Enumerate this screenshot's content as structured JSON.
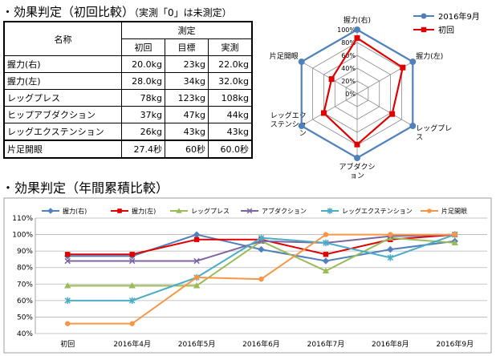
{
  "heading1": {
    "main": "・効果判定（初回比較）",
    "note": "（実測「0」は未測定）"
  },
  "heading2": "・効果判定（年間累積比較）",
  "table": {
    "header_name": "名称",
    "header_group": "測定",
    "sub_headers": [
      "初回",
      "目標",
      "実測"
    ],
    "rows": [
      {
        "name": "握力(右)",
        "cells": [
          "20.0kg",
          "23kg",
          "22.0kg"
        ]
      },
      {
        "name": "握力(左)",
        "cells": [
          "28.0kg",
          "34kg",
          "32.0kg"
        ]
      },
      {
        "name": "レッグプレス",
        "cells": [
          "78kg",
          "123kg",
          "108kg"
        ]
      },
      {
        "name": "ヒップアブダクション",
        "cells": [
          "37kg",
          "47kg",
          "44kg"
        ]
      },
      {
        "name": "レッグエクステンション",
        "cells": [
          "26kg",
          "43kg",
          "43kg"
        ]
      },
      {
        "name": "片足開眼",
        "cells": [
          "27.4秒",
          "60秒",
          "60.0秒"
        ]
      }
    ]
  },
  "chart_data": [
    {
      "type": "radar",
      "axes": [
        "握力(右)",
        "握力(左)",
        "レッグプレス",
        "アブダクション",
        "レッグエクステンション",
        "片足開眼"
      ],
      "radial_ticks": [
        "0%",
        "20%",
        "40%",
        "60%",
        "80%",
        "100%"
      ],
      "rlim": [
        0,
        100
      ],
      "series": [
        {
          "name": "2016年9月",
          "color": "#4F81BD",
          "marker": "circle",
          "values": [
            100,
            100,
            100,
            100,
            100,
            100
          ]
        },
        {
          "name": "初回",
          "color": "#E00000",
          "marker": "square",
          "values": [
            87,
            82,
            63,
            79,
            60,
            46
          ]
        }
      ],
      "legend": "top-right"
    },
    {
      "type": "line",
      "categories": [
        "初回",
        "2016年4月",
        "2016年5月",
        "2016年6月",
        "2016年7月",
        "2016年8月",
        "2016年9月"
      ],
      "y_ticks": [
        "40%",
        "50%",
        "60%",
        "70%",
        "80%",
        "90%",
        "100%",
        "110%"
      ],
      "ylim": [
        40,
        110
      ],
      "grid": true,
      "legend": "top",
      "series": [
        {
          "name": "握力(右)",
          "color": "#4F81BD",
          "marker": "diamond",
          "values": [
            87,
            87,
            100,
            91,
            84,
            91,
            96
          ]
        },
        {
          "name": "握力(左)",
          "color": "#E00000",
          "marker": "square",
          "values": [
            88,
            88,
            97,
            97,
            88,
            97,
            100
          ]
        },
        {
          "name": "レッグプレス",
          "color": "#9BBB59",
          "marker": "triangle",
          "values": [
            69,
            69,
            69,
            96,
            78,
            98,
            95
          ]
        },
        {
          "name": "アブダクション",
          "color": "#7F64A2",
          "marker": "x",
          "values": [
            84,
            84,
            84,
            96,
            95,
            99,
            100
          ]
        },
        {
          "name": "レッグエクステンション",
          "color": "#4BACC6",
          "marker": "star",
          "values": [
            60,
            60,
            74,
            98,
            95,
            86,
            100
          ]
        },
        {
          "name": "片足開眼",
          "color": "#F79646",
          "marker": "circle",
          "values": [
            46,
            46,
            74,
            73,
            100,
            100,
            100
          ]
        }
      ]
    }
  ]
}
